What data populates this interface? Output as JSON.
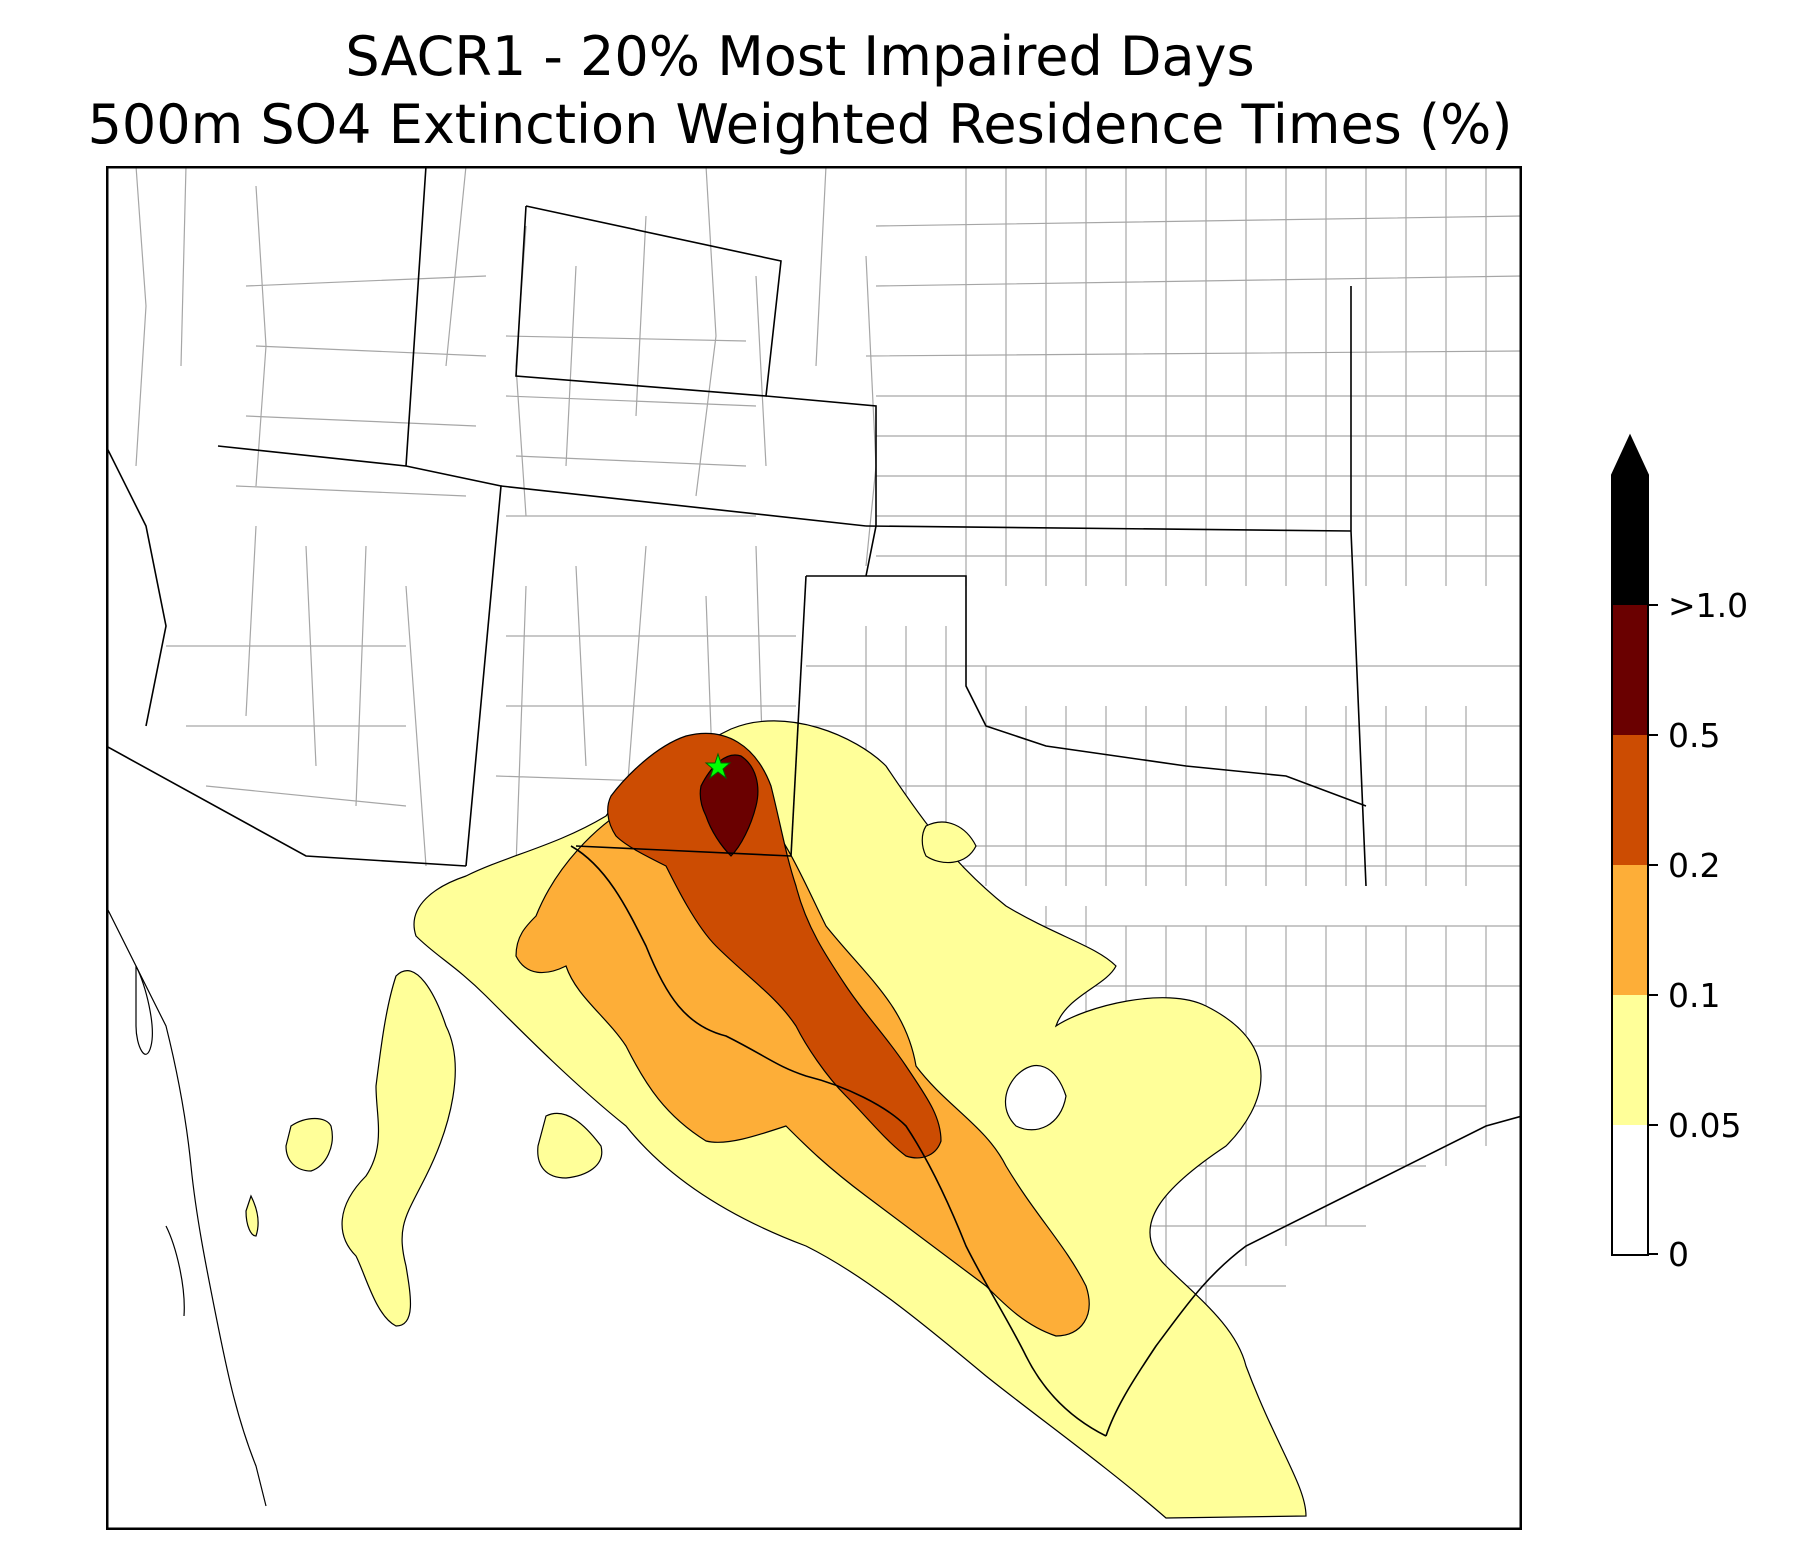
{
  "title": {
    "line1": "SACR1 - 20% Most Impaired Days",
    "line2": "500m SO4 Extinction Weighted Residence Times (%)"
  },
  "colorbar": {
    "extend": "max",
    "levels": [
      {
        "label": "0",
        "color": "#ffffff"
      },
      {
        "label": "0.05",
        "color": "#ffff99"
      },
      {
        "label": "0.1",
        "color": "#fdae38"
      },
      {
        "label": "0.2",
        "color": "#cc4c02"
      },
      {
        "label": "0.5",
        "color": "#6a0000"
      },
      {
        "label": ">1.0",
        "color": "#000000"
      }
    ]
  },
  "map": {
    "marker": {
      "icon": "star-icon",
      "color": "#00ff00"
    },
    "fill_colors": {
      "band_005": "#ffff99",
      "band_01": "#fdae38",
      "band_02": "#cc4c02",
      "band_05": "#6a0000"
    },
    "line_colors": {
      "state": "#000000",
      "county": "#a6a6a6"
    }
  }
}
